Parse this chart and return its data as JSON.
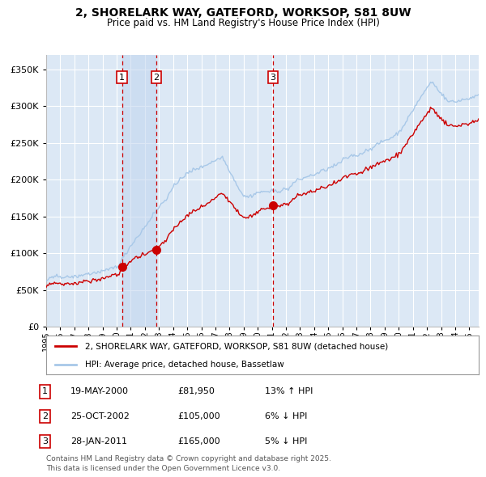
{
  "title": "2, SHORELARK WAY, GATEFORD, WORKSOP, S81 8UW",
  "subtitle": "Price paid vs. HM Land Registry's House Price Index (HPI)",
  "legend_line1": "2, SHORELARK WAY, GATEFORD, WORKSOP, S81 8UW (detached house)",
  "legend_line2": "HPI: Average price, detached house, Bassetlaw",
  "footer1": "Contains HM Land Registry data © Crown copyright and database right 2025.",
  "footer2": "This data is licensed under the Open Government Licence v3.0.",
  "transactions": [
    {
      "num": 1,
      "date": "19-MAY-2000",
      "price": 81950,
      "pct": "13%",
      "dir": "↑"
    },
    {
      "num": 2,
      "date": "25-OCT-2002",
      "price": 105000,
      "pct": "6%",
      "dir": "↓"
    },
    {
      "num": 3,
      "date": "28-JAN-2011",
      "price": 165000,
      "pct": "5%",
      "dir": "↓"
    }
  ],
  "sale_dates_decimal": [
    2000.38,
    2002.82,
    2011.07
  ],
  "sale_prices": [
    81950,
    105000,
    165000
  ],
  "shade_between": [
    [
      2000.38,
      2002.82
    ]
  ],
  "ylim": [
    0,
    370000
  ],
  "yticks": [
    0,
    50000,
    100000,
    150000,
    200000,
    250000,
    300000,
    350000
  ],
  "xlim_start": 1995.0,
  "xlim_end": 2025.67,
  "hpi_color": "#a8c8e8",
  "red_line_color": "#cc0000",
  "bg_color": "#dce8f5",
  "grid_color": "#ffffff",
  "shade_color": "#c0d4ee"
}
